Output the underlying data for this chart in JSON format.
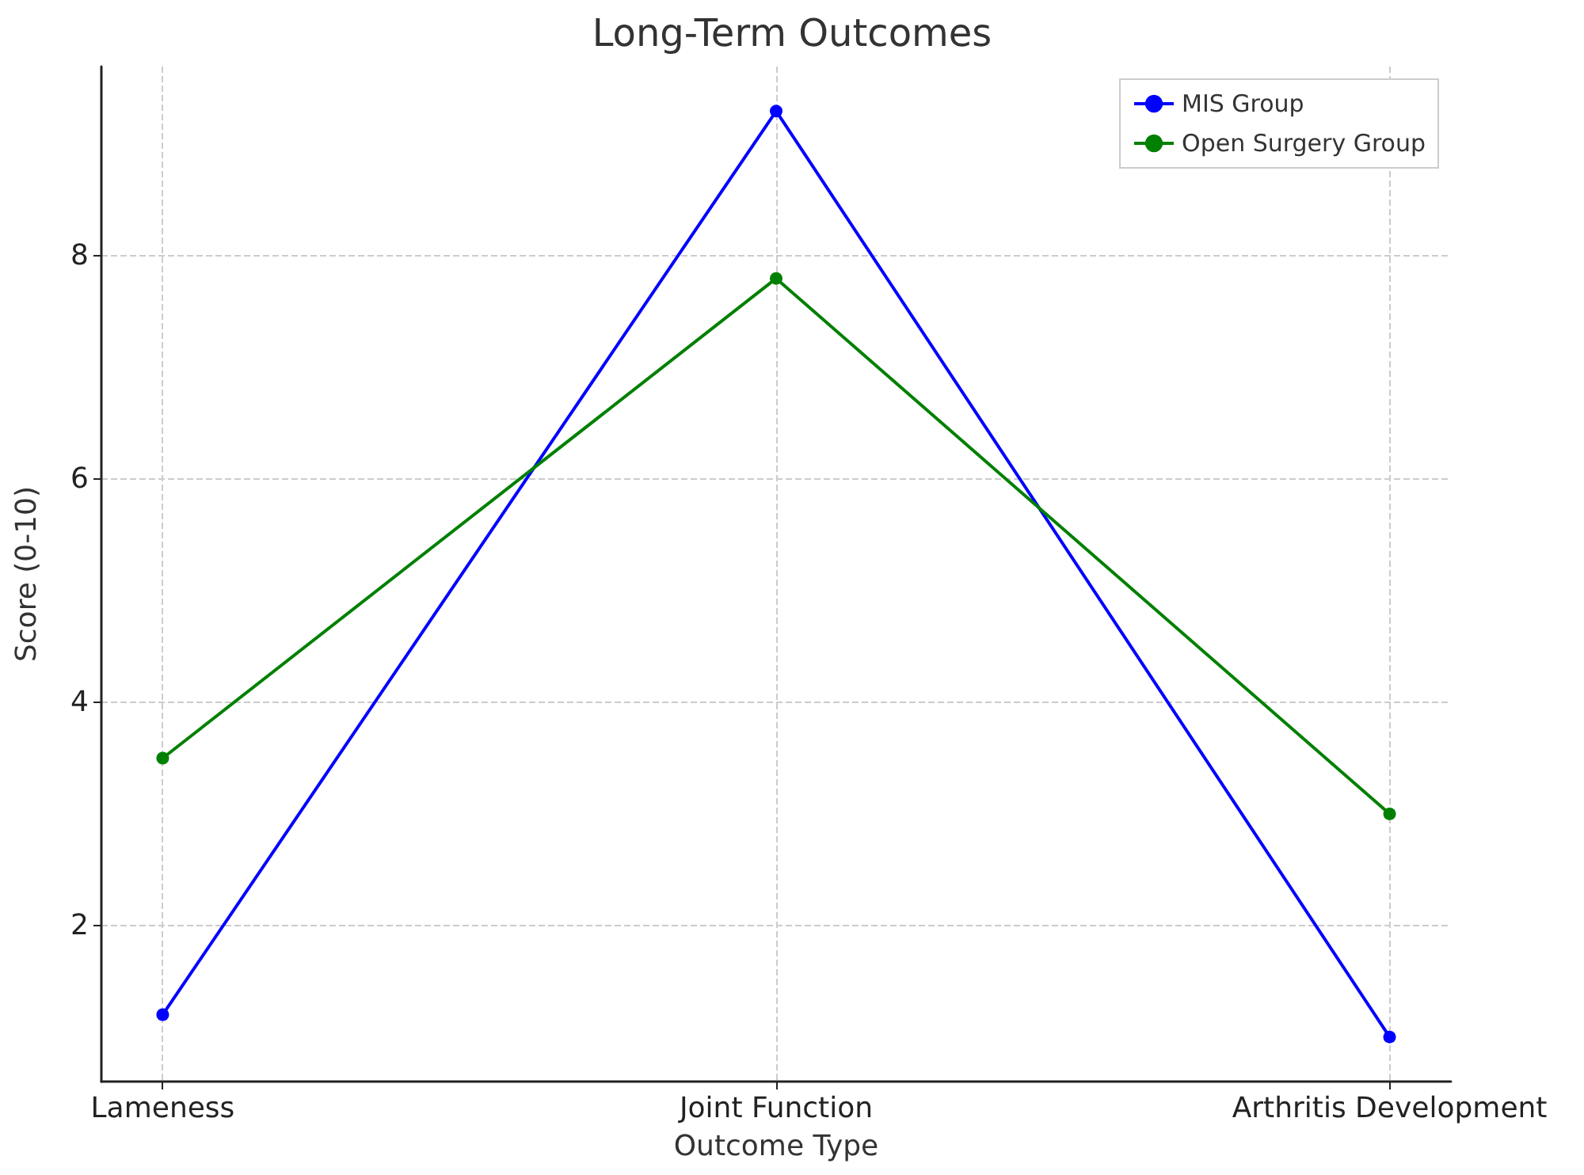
{
  "chart_data": {
    "type": "line",
    "title": "Long-Term Outcomes",
    "xlabel": "Outcome Type",
    "ylabel": "Score (0-10)",
    "categories": [
      "Lameness",
      "Joint Function",
      "Arthritis Development"
    ],
    "series": [
      {
        "name": "MIS Group",
        "color": "#0000ff",
        "values": [
          1.2,
          9.3,
          1.0
        ]
      },
      {
        "name": "Open Surgery Group",
        "color": "#008000",
        "values": [
          3.5,
          7.8,
          3.0
        ]
      }
    ],
    "ylim": [
      0.6,
      9.7
    ],
    "yticks": [
      2,
      4,
      6,
      8
    ],
    "grid": true,
    "legend": "top right",
    "marker": "circle",
    "line_style": "solid"
  }
}
